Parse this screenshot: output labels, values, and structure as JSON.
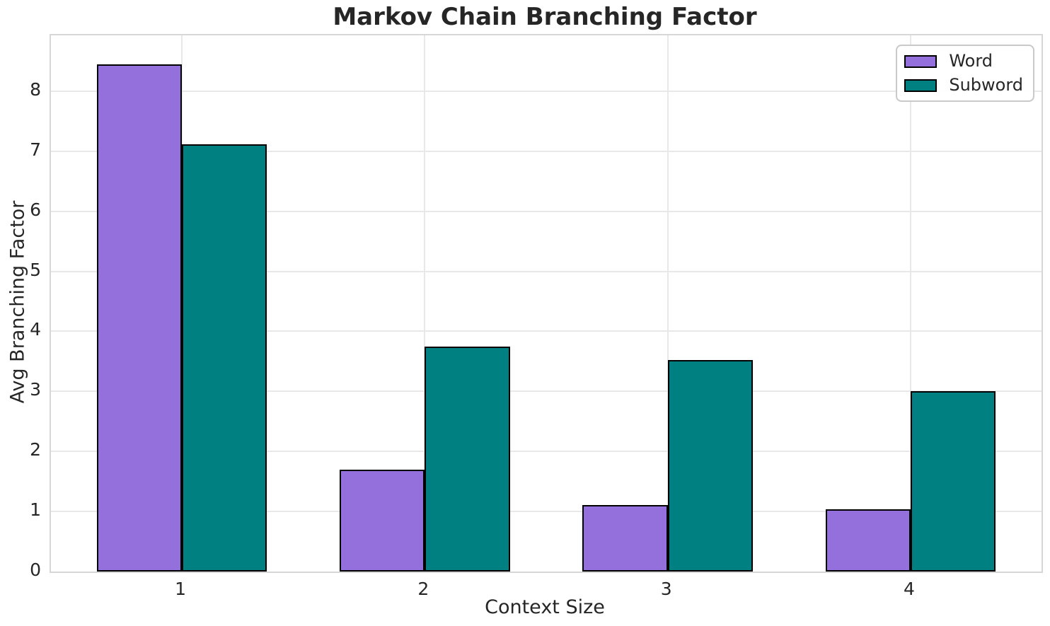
{
  "chart_data": {
    "type": "bar",
    "title": "Markov Chain Branching Factor",
    "xlabel": "Context Size",
    "ylabel": "Avg Branching Factor",
    "categories": [
      "1",
      "2",
      "3",
      "4"
    ],
    "series": [
      {
        "name": "Word",
        "color": "#9370DB",
        "values": [
          8.45,
          1.7,
          1.11,
          1.04
        ]
      },
      {
        "name": "Subword",
        "color": "#008080",
        "values": [
          7.12,
          3.75,
          3.52,
          3.0
        ]
      }
    ],
    "yticks": [
      0,
      1,
      2,
      3,
      4,
      5,
      6,
      7,
      8
    ],
    "ylim": [
      0,
      8.93
    ],
    "xlim": [
      0.461,
      4.539
    ],
    "bar_width": 0.35,
    "grid": true,
    "legend_position": "upper right",
    "colors": {
      "bar_edge": "#000000",
      "grid": "#e8e8e8",
      "spine": "#d7d7d7",
      "text": "#262626",
      "background": "#ffffff"
    }
  }
}
